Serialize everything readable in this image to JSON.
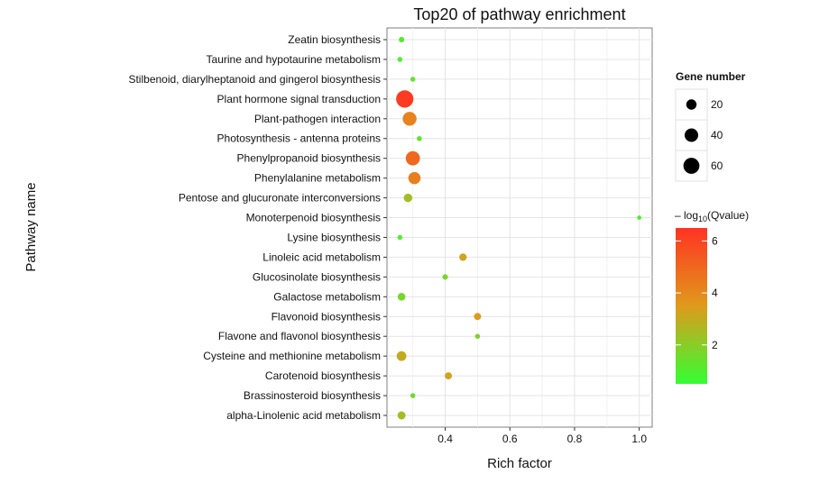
{
  "chart_data": {
    "type": "scatter",
    "title": "Top20 of pathway enrichment",
    "xlabel": "Rich factor",
    "ylabel": "Pathway name",
    "xlim": [
      0.22,
      1.04
    ],
    "x_ticks": [
      0.4,
      0.6,
      0.8,
      1.0
    ],
    "x_tick_labels": [
      "0.4",
      "0.6",
      "0.8",
      "1.0"
    ],
    "grid": true,
    "legend_placement": "right",
    "size_legend": {
      "title": "Gene number",
      "entries": [
        {
          "label": "20",
          "value": 20
        },
        {
          "label": "40",
          "value": 40
        },
        {
          "label": "60",
          "value": 60
        }
      ]
    },
    "color_legend": {
      "title_prefix": "– log",
      "title_sub": "10",
      "title_suffix": "(Qvalue)",
      "range": [
        0.5,
        6.5
      ],
      "ticks": [
        2,
        4,
        6
      ],
      "tick_labels": [
        "2",
        "4",
        "6"
      ],
      "color_low": "#33ff33",
      "color_mid": "#e09a1c",
      "color_high": "#ff3322"
    },
    "categories": [
      "Zeatin biosynthesis",
      "Taurine and hypotaurine metabolism",
      "Stilbenoid, diarylheptanoid and gingerol biosynthesis",
      "Plant hormone signal transduction",
      "Plant-pathogen interaction",
      "Photosynthesis - antenna proteins",
      "Phenylpropanoid biosynthesis",
      "Phenylalanine metabolism",
      "Pentose and glucuronate interconversions",
      "Monoterpenoid biosynthesis",
      "Lysine biosynthesis",
      "Linoleic acid metabolism",
      "Glucosinolate biosynthesis",
      "Galactose metabolism",
      "Flavonoid biosynthesis",
      "Flavone and flavonol biosynthesis",
      "Cysteine and methionine metabolism",
      "Carotenoid biosynthesis",
      "Brassinosteroid biosynthesis",
      "alpha-Linolenic acid metabolism"
    ],
    "points": [
      {
        "pathway": "Zeatin biosynthesis",
        "rich_factor": 0.265,
        "gene_number": 3,
        "neg_log10_q": 1.2
      },
      {
        "pathway": "Taurine and hypotaurine metabolism",
        "rich_factor": 0.26,
        "gene_number": 2,
        "neg_log10_q": 1.0
      },
      {
        "pathway": "Stilbenoid, diarylheptanoid and gingerol biosynthesis",
        "rich_factor": 0.3,
        "gene_number": 2,
        "neg_log10_q": 1.3
      },
      {
        "pathway": "Plant hormone signal transduction",
        "rich_factor": 0.275,
        "gene_number": 72,
        "neg_log10_q": 6.3
      },
      {
        "pathway": "Plant-pathogen interaction",
        "rich_factor": 0.29,
        "gene_number": 42,
        "neg_log10_q": 4.2
      },
      {
        "pathway": "Photosynthesis - antenna proteins",
        "rich_factor": 0.32,
        "gene_number": 2,
        "neg_log10_q": 1.3
      },
      {
        "pathway": "Phenylpropanoid biosynthesis",
        "rich_factor": 0.3,
        "gene_number": 45,
        "neg_log10_q": 5.0
      },
      {
        "pathway": "Phenylalanine metabolism",
        "rich_factor": 0.305,
        "gene_number": 31,
        "neg_log10_q": 4.3
      },
      {
        "pathway": "Pentose and glucuronate interconversions",
        "rich_factor": 0.285,
        "gene_number": 12,
        "neg_log10_q": 2.4
      },
      {
        "pathway": "Monoterpenoid biosynthesis",
        "rich_factor": 1.0,
        "gene_number": 1,
        "neg_log10_q": 1.0
      },
      {
        "pathway": "Lysine biosynthesis",
        "rich_factor": 0.26,
        "gene_number": 2,
        "neg_log10_q": 1.0
      },
      {
        "pathway": "Linoleic acid metabolism",
        "rich_factor": 0.455,
        "gene_number": 8,
        "neg_log10_q": 3.2
      },
      {
        "pathway": "Glucosinolate biosynthesis",
        "rich_factor": 0.4,
        "gene_number": 3,
        "neg_log10_q": 1.7
      },
      {
        "pathway": "Galactose metabolism",
        "rich_factor": 0.265,
        "gene_number": 9,
        "neg_log10_q": 1.7
      },
      {
        "pathway": "Flavonoid biosynthesis",
        "rich_factor": 0.5,
        "gene_number": 7,
        "neg_log10_q": 3.4
      },
      {
        "pathway": "Flavone and flavonol biosynthesis",
        "rich_factor": 0.5,
        "gene_number": 2,
        "neg_log10_q": 1.8
      },
      {
        "pathway": "Cysteine and methionine metabolism",
        "rich_factor": 0.265,
        "gene_number": 17,
        "neg_log10_q": 3.0
      },
      {
        "pathway": "Carotenoid biosynthesis",
        "rich_factor": 0.41,
        "gene_number": 7,
        "neg_log10_q": 3.2
      },
      {
        "pathway": "Brassinosteroid biosynthesis",
        "rich_factor": 0.3,
        "gene_number": 2,
        "neg_log10_q": 1.6
      },
      {
        "pathway": "alpha-Linolenic acid metabolism",
        "rich_factor": 0.265,
        "gene_number": 10,
        "neg_log10_q": 2.5
      }
    ]
  }
}
